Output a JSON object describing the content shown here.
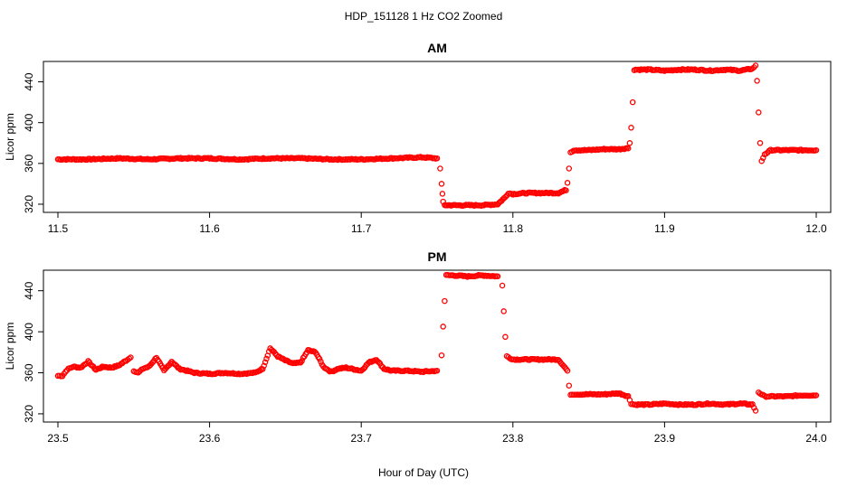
{
  "figure": {
    "title": "HDP_151128  1 Hz CO2 Zoomed",
    "xlabel": "Hour of Day (UTC)"
  },
  "chart_data": [
    {
      "type": "scatter",
      "title": "AM",
      "ylabel": "Licor ppm",
      "xlim": [
        11.5,
        12.0
      ],
      "ylim": [
        312,
        460
      ],
      "xticks": [
        11.5,
        11.6,
        11.7,
        11.8,
        11.9,
        12.0
      ],
      "xtick_labels": [
        "11.5",
        "11.6",
        "11.7",
        "11.8",
        "11.9",
        "12.0"
      ],
      "yticks": [
        320,
        360,
        400,
        440
      ],
      "ytick_labels": [
        "320",
        "360",
        "400",
        "440"
      ],
      "marker_color": "#ff0000",
      "series": [
        {
          "x": [
            11.5,
            11.52,
            11.54,
            11.56,
            11.58,
            11.6,
            11.62,
            11.64,
            11.66,
            11.68,
            11.7,
            11.72,
            11.74,
            11.75,
            11.752,
            11.753,
            11.7535,
            11.754,
            11.755,
            11.76,
            11.77,
            11.78,
            11.79,
            11.795,
            11.797,
            11.8,
            11.81,
            11.82,
            11.83,
            11.835,
            11.836,
            11.837,
            11.838,
            11.84,
            11.85,
            11.86,
            11.87,
            11.876,
            11.877,
            11.878,
            11.879,
            11.88,
            11.89,
            11.9,
            11.91,
            11.92,
            11.93,
            11.94,
            11.95,
            11.958,
            11.96,
            11.961,
            11.962,
            11.963,
            11.964,
            11.966,
            11.97,
            11.98,
            11.99,
            12.0
          ],
          "y": [
            364,
            364,
            365,
            364,
            365,
            365,
            364,
            365,
            365,
            364,
            364,
            365,
            366,
            365,
            355,
            340,
            330,
            322,
            319,
            319,
            319,
            319,
            320,
            327,
            331,
            330,
            331,
            331,
            331,
            334,
            341,
            355,
            371,
            373,
            373,
            374,
            374,
            375,
            380,
            395,
            420,
            452,
            452,
            451,
            452,
            452,
            451,
            452,
            451,
            453,
            456,
            441,
            410,
            380,
            362,
            369,
            373,
            373,
            373,
            373
          ]
        }
      ]
    },
    {
      "type": "scatter",
      "title": "PM",
      "ylabel": "Licor ppm",
      "xlim": [
        23.5,
        24.0
      ],
      "ylim": [
        312,
        460
      ],
      "xticks": [
        23.5,
        23.6,
        23.7,
        23.8,
        23.9,
        24.0
      ],
      "xtick_labels": [
        "23.5",
        "23.6",
        "23.7",
        "23.8",
        "23.9",
        "24.0"
      ],
      "yticks": [
        320,
        360,
        400,
        440
      ],
      "ytick_labels": [
        "320",
        "360",
        "400",
        "440"
      ],
      "marker_color": "#ff0000",
      "series": [
        {
          "x": [
            23.5,
            23.503,
            23.506,
            23.51,
            23.515,
            23.52,
            23.525,
            23.53,
            23.535,
            23.54,
            23.545,
            23.548,
            23.55,
            23.553,
            23.556,
            23.56,
            23.565,
            23.57,
            23.575,
            23.58,
            23.59,
            23.6,
            23.61,
            23.62,
            23.63,
            23.635,
            23.64,
            23.645,
            23.65,
            23.655,
            23.66,
            23.665,
            23.67,
            23.675,
            23.68,
            23.685,
            23.69,
            23.7,
            23.705,
            23.71,
            23.715,
            23.72,
            23.73,
            23.74,
            23.75,
            23.753,
            23.754,
            23.755,
            23.756,
            23.76,
            23.77,
            23.78,
            23.79,
            23.793,
            23.794,
            23.795,
            23.796,
            23.8,
            23.81,
            23.82,
            23.83,
            23.836,
            23.837,
            23.838,
            23.839,
            23.84,
            23.85,
            23.86,
            23.87,
            23.876,
            23.878,
            23.88,
            23.89,
            23.9,
            23.91,
            23.92,
            23.93,
            23.94,
            23.95,
            23.958,
            23.96,
            23.962,
            23.966,
            23.97,
            23.98,
            23.99,
            24.0
          ],
          "y": [
            357,
            357,
            363,
            366,
            365,
            371,
            363,
            366,
            365,
            367,
            372,
            375,
            362,
            360,
            364,
            366,
            375,
            362,
            371,
            364,
            360,
            359,
            360,
            359,
            360,
            364,
            384,
            376,
            372,
            369,
            370,
            382,
            380,
            366,
            361,
            364,
            365,
            362,
            370,
            373,
            364,
            362,
            362,
            361,
            362,
            377,
            405,
            430,
            455,
            455,
            454,
            455,
            454,
            445,
            420,
            395,
            376,
            373,
            373,
            373,
            373,
            362,
            347,
            339,
            339,
            339,
            339,
            339,
            340,
            337,
            330,
            329,
            329,
            330,
            329,
            329,
            330,
            329,
            330,
            329,
            323,
            341,
            337,
            337,
            337,
            338,
            338
          ]
        }
      ]
    }
  ]
}
